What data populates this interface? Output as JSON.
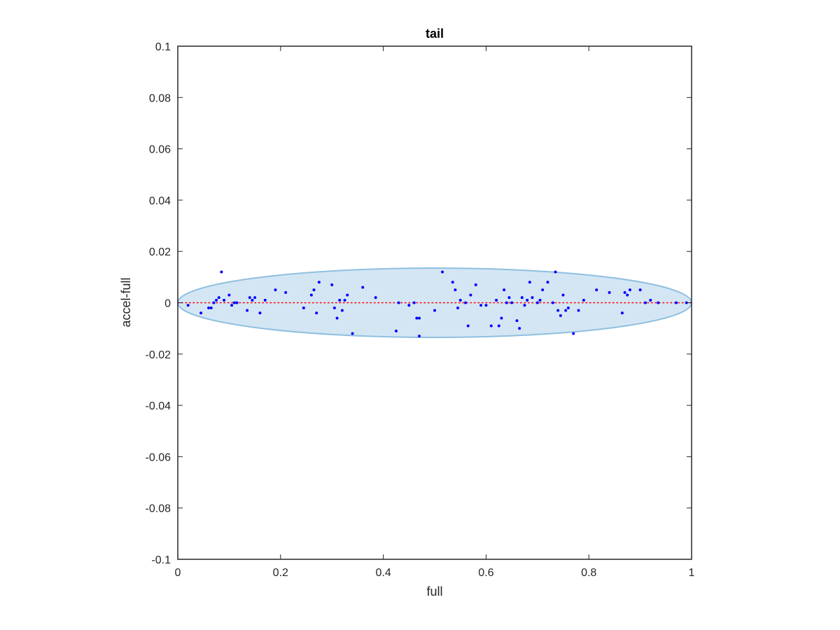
{
  "chart_data": {
    "type": "scatter",
    "title": "tail",
    "xlabel": "full",
    "ylabel": "accel-full",
    "xlim": [
      0,
      1
    ],
    "ylim": [
      -0.1,
      0.1
    ],
    "x_ticks": [
      "0",
      "0.2",
      "0.4",
      "0.6",
      "0.8",
      "1"
    ],
    "x_tick_values": [
      0,
      0.2,
      0.4,
      0.6,
      0.8,
      1
    ],
    "y_ticks": [
      "0.1",
      "0.08",
      "0.06",
      "0.04",
      "0.02",
      "0",
      "-0.02",
      "-0.04",
      "-0.06",
      "-0.08",
      "-0.1"
    ],
    "y_tick_values": [
      0.1,
      0.08,
      0.06,
      0.04,
      0.02,
      0,
      -0.02,
      -0.04,
      -0.06,
      -0.08,
      -0.1
    ],
    "grid": false,
    "colors": {
      "points": "#0000ff",
      "reference_line": "#ff0000",
      "ellipse_fill": "#d4e6f4",
      "ellipse_edge": "#8fbfe0",
      "axes": "#262626"
    },
    "ellipse": {
      "center": [
        0.5,
        0
      ],
      "semi_axis_x": 0.5,
      "semi_axis_y": 0.0135
    },
    "reference_line": {
      "y": 0,
      "style": "dotted"
    },
    "series": [
      {
        "x": [
          0.02,
          0.045,
          0.06,
          0.065,
          0.07,
          0.075,
          0.08,
          0.085,
          0.09,
          0.1,
          0.105,
          0.11,
          0.115,
          0.135,
          0.14,
          0.145,
          0.15,
          0.16,
          0.17,
          0.19,
          0.21,
          0.245,
          0.26,
          0.265,
          0.27,
          0.275,
          0.3,
          0.305,
          0.31,
          0.315,
          0.32,
          0.325,
          0.33,
          0.34,
          0.36,
          0.385,
          0.425,
          0.43,
          0.45,
          0.46,
          0.465,
          0.47,
          0.47,
          0.5,
          0.515,
          0.535,
          0.54,
          0.545,
          0.55,
          0.56,
          0.565,
          0.57,
          0.58,
          0.59,
          0.6,
          0.61,
          0.62,
          0.625,
          0.63,
          0.635,
          0.64,
          0.645,
          0.65,
          0.66,
          0.665,
          0.67,
          0.675,
          0.68,
          0.685,
          0.69,
          0.7,
          0.705,
          0.71,
          0.72,
          0.73,
          0.735,
          0.74,
          0.745,
          0.75,
          0.755,
          0.76,
          0.77,
          0.78,
          0.79,
          0.815,
          0.84,
          0.865,
          0.87,
          0.875,
          0.88,
          0.9,
          0.91,
          0.92,
          0.935,
          0.97,
          0.99
        ],
        "y": [
          -0.001,
          -0.004,
          -0.002,
          -0.002,
          0.0,
          0.001,
          0.002,
          0.012,
          0.001,
          0.003,
          -0.001,
          0.0,
          0.0,
          -0.003,
          0.002,
          0.001,
          0.002,
          -0.004,
          0.001,
          0.005,
          0.004,
          -0.002,
          0.003,
          0.005,
          -0.004,
          0.008,
          0.007,
          -0.002,
          -0.006,
          0.001,
          -0.003,
          0.001,
          0.003,
          -0.012,
          0.006,
          0.002,
          -0.011,
          0.0,
          -0.001,
          0.0,
          -0.006,
          -0.013,
          -0.006,
          -0.003,
          0.012,
          0.008,
          0.005,
          -0.002,
          0.001,
          0.0,
          -0.009,
          0.003,
          0.007,
          -0.001,
          -0.001,
          -0.009,
          0.001,
          -0.009,
          -0.006,
          0.005,
          0.0,
          0.002,
          0.0,
          -0.007,
          -0.01,
          0.002,
          -0.001,
          0.001,
          0.008,
          0.002,
          0.0,
          0.001,
          0.005,
          0.008,
          0.0,
          0.012,
          -0.003,
          -0.005,
          0.003,
          -0.003,
          -0.002,
          -0.012,
          -0.003,
          0.001,
          0.005,
          0.004,
          -0.004,
          0.004,
          0.003,
          0.005,
          0.005,
          0.0,
          0.001,
          0.0,
          0.0,
          0.0
        ]
      }
    ]
  }
}
